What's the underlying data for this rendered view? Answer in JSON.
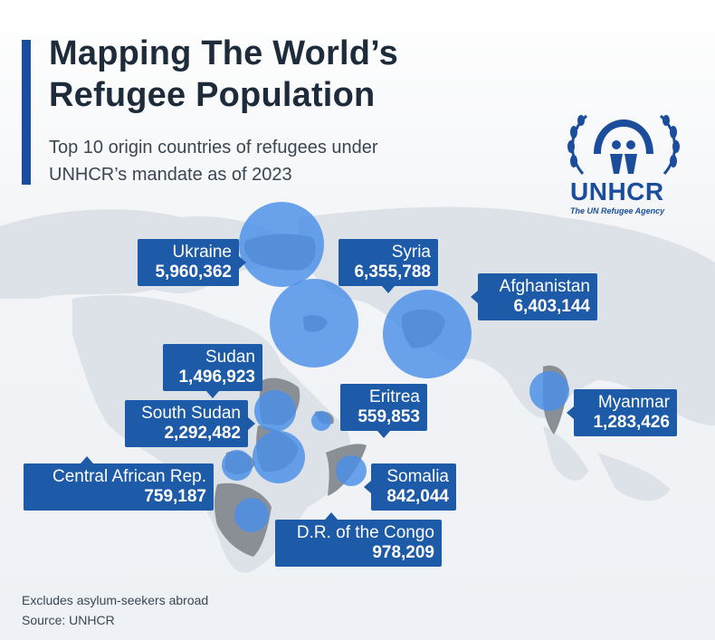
{
  "header": {
    "title_line1": "Mapping The World’s",
    "title_line2": "Refugee Population",
    "subtitle_line1": "Top 10 origin countries of refugees under",
    "subtitle_line2": "UNHCR’s mandate as of 2023"
  },
  "logo": {
    "name": "UNHCR",
    "tagline": "The UN Refugee Agency"
  },
  "map": {
    "bubble_color": "#4a8fe8",
    "label_color": "#1d5aa8",
    "land_color": "#dde2e8",
    "highlight_land_color": "#8a8f96",
    "countries": [
      {
        "name": "Ukraine",
        "value": "5,960,362",
        "refugees": 5960362
      },
      {
        "name": "Syria",
        "value": "6,355,788",
        "refugees": 6355788
      },
      {
        "name": "Afghanistan",
        "value": "6,403,144",
        "refugees": 6403144
      },
      {
        "name": "Sudan",
        "value": "1,496,923",
        "refugees": 1496923
      },
      {
        "name": "South Sudan",
        "value": "2,292,482",
        "refugees": 2292482
      },
      {
        "name": "Eritrea",
        "value": "559,853",
        "refugees": 559853
      },
      {
        "name": "Myanmar",
        "value": "1,283,426",
        "refugees": 1283426
      },
      {
        "name": "Central African Rep.",
        "value": "759,187",
        "refugees": 759187
      },
      {
        "name": "Somalia",
        "value": "842,044",
        "refugees": 842044
      },
      {
        "name": "D.R. of the Congo",
        "value": "978,209",
        "refugees": 978209
      }
    ]
  },
  "footer": {
    "note": "Excludes asylum-seekers abroad",
    "source": "Source: UNHCR"
  }
}
